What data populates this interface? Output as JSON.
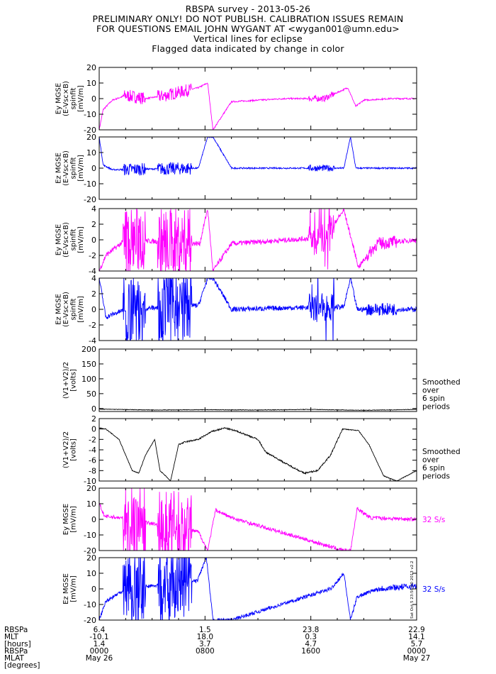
{
  "header": {
    "lines": [
      "RBSPA survey - 2013-05-26",
      "PRELIMINARY ONLY! DO NOT PUBLISH. CALIBRATION ISSUES REMAIN",
      "FOR QUESTIONS EMAIL JOHN WYGANT AT <wygan001@umn.edu>",
      "Vertical lines for eclipse",
      "Flagged data indicated by change in color"
    ]
  },
  "colors": {
    "magenta": "#ff00ff",
    "blue": "#0000ff",
    "black": "#000000"
  },
  "chart_data": [
    {
      "type": "line",
      "color": "magenta",
      "ylabel": [
        "Ey MGSE",
        "(E-Vsc×B)",
        "spinfit",
        "[mV/m]"
      ],
      "ylim": [
        -20,
        20
      ],
      "yticks": [
        -20,
        -10,
        0,
        10,
        20
      ],
      "series": [
        {
          "x_hours": [
            0,
            0.3,
            1,
            2,
            3.5,
            5,
            7.5,
            8.2,
            8.6,
            10,
            14,
            17,
            18.8,
            19.4,
            20,
            22,
            24
          ],
          "y": [
            -20,
            -7,
            -1,
            2,
            0,
            2,
            7,
            10,
            -20,
            -2,
            0,
            0,
            7,
            -5,
            -1,
            0,
            0
          ]
        }
      ]
    },
    {
      "type": "line",
      "color": "blue",
      "ylabel": [
        "Ez MGSE",
        "(E-Vsc×B)",
        "spinfit",
        "[mV/m]"
      ],
      "ylim": [
        -20,
        20
      ],
      "yticks": [
        -20,
        -10,
        0,
        10,
        20
      ],
      "series": [
        {
          "x_hours": [
            0,
            0.3,
            1,
            7.5,
            8.2,
            8.6,
            10,
            18.5,
            19,
            19.4,
            20,
            24
          ],
          "y": [
            20,
            2,
            -1,
            0,
            20,
            20,
            0,
            0,
            20,
            0,
            0,
            0
          ]
        }
      ]
    },
    {
      "type": "line",
      "color": "magenta",
      "ylabel": [
        "Ey MGSE",
        "(E-Vsc×B)",
        "spinfit",
        "[mV/m]"
      ],
      "ylim": [
        -4,
        4
      ],
      "yticks": [
        -4,
        -2,
        0,
        2,
        4
      ],
      "series": [
        {
          "x_hours": [
            0,
            0.5,
            2,
            7.6,
            8.2,
            8.6,
            10,
            17,
            18.5,
            19.0,
            19.6,
            21,
            24
          ],
          "y": [
            -4,
            -2,
            0,
            -0.5,
            4,
            -4,
            -0.5,
            0.3,
            3.8,
            0.5,
            -3.5,
            -0.5,
            0
          ]
        }
      ]
    },
    {
      "type": "line",
      "color": "blue",
      "ylabel": [
        "Ez MGSE",
        "(E-Vsc×B)",
        "spinfit",
        "[mV/m]"
      ],
      "ylim": [
        -4,
        4
      ],
      "yticks": [
        -4,
        -2,
        0,
        2,
        4
      ],
      "series": [
        {
          "x_hours": [
            0,
            0.5,
            2,
            7.5,
            8.2,
            8.6,
            10,
            17,
            18.5,
            19.0,
            19.5,
            21,
            24
          ],
          "y": [
            4,
            -1,
            0,
            0.5,
            4,
            4,
            0,
            0.3,
            0.3,
            4,
            0,
            0,
            0
          ]
        }
      ]
    },
    {
      "type": "line",
      "color": "black",
      "ylabel": [
        "(V1+V2)/2",
        "[volts]"
      ],
      "right_label": [
        "Smoothed",
        "over",
        "6 spin",
        "periods"
      ],
      "ylim": [
        -10,
        200
      ],
      "yticks": [
        0,
        50,
        100,
        150,
        200
      ],
      "series": [
        {
          "x_hours": [
            0,
            4,
            8,
            12,
            16,
            20,
            24
          ],
          "y": [
            -2,
            -5,
            -4,
            -5,
            -3,
            -6,
            -3
          ]
        }
      ]
    },
    {
      "type": "line",
      "color": "black",
      "ylabel": [
        "(V1+V2)/2",
        "[volts]"
      ],
      "right_label": [
        "Smoothed",
        "over",
        "6 spin",
        "periods"
      ],
      "ylim": [
        -10,
        2
      ],
      "yticks": [
        -10,
        -8,
        -6,
        -4,
        -2,
        0,
        2
      ],
      "series": [
        {
          "x_hours": [
            0,
            0.5,
            1.5,
            2.5,
            3.0,
            3.5,
            4.2,
            4.6,
            5.4,
            6.0,
            6.5,
            7.5,
            8.5,
            9.5,
            10.5,
            12.0,
            12.6,
            13.0,
            14.0,
            15.5,
            16.5,
            17.5,
            18.4,
            19.6,
            20.4,
            21.5,
            22.5,
            24
          ],
          "y": [
            0.2,
            0,
            -2,
            -8,
            -8.5,
            -5,
            -2,
            -8,
            -10,
            -3,
            -2.5,
            -2,
            -0.5,
            0.2,
            -0.5,
            -2,
            -4.5,
            -5,
            -6.5,
            -8.5,
            -8,
            -5,
            0,
            -0.3,
            -3,
            -9,
            -10,
            -8
          ]
        }
      ]
    },
    {
      "type": "line",
      "color": "magenta",
      "ylabel": [
        "Ey MGSE",
        "[mV/m]"
      ],
      "right_label": [
        "32 S/s"
      ],
      "ylim": [
        -20,
        20
      ],
      "yticks": [
        -20,
        -10,
        0,
        10,
        20
      ],
      "series": [
        {
          "x_hours": [
            0,
            0.4,
            1.5,
            7.5,
            8.2,
            8.8,
            10,
            18.5,
            19.0,
            19.5,
            20.5,
            24
          ],
          "y": [
            10,
            2,
            1,
            -8,
            -20,
            6,
            1,
            -20,
            -20,
            7,
            1,
            0
          ]
        }
      ]
    },
    {
      "type": "line",
      "color": "blue",
      "ylabel": [
        "Ez MGSE",
        "[mV/m]"
      ],
      "right_label": [
        "32 S/s"
      ],
      "ylim": [
        -20,
        20
      ],
      "yticks": [
        -20,
        -10,
        0,
        10,
        20
      ],
      "series": [
        {
          "x_hours": [
            0,
            0.5,
            2,
            7.4,
            8.1,
            8.6,
            10,
            17.5,
            18.5,
            19.0,
            19.5,
            21,
            24
          ],
          "y": [
            -20,
            -8,
            0,
            5,
            20,
            -20,
            -20,
            0,
            10,
            -20,
            -5,
            0,
            2
          ]
        }
      ]
    }
  ],
  "x_axis": {
    "range_hours": [
      0,
      24
    ],
    "row_labels": [
      "RBSPa",
      "MLT",
      "[hours]",
      "RBSPa",
      "MLAT",
      "[degrees]"
    ],
    "ticks": [
      {
        "hours": 0,
        "mlt": "6.4",
        "mlat": "-10.1",
        "hours_val": "1.4",
        "time": "0000",
        "date": "May 26"
      },
      {
        "hours": 8,
        "mlt": "1.5",
        "mlat": "18.0",
        "hours_val": "3.7",
        "time": "0800",
        "date": ""
      },
      {
        "hours": 16,
        "mlt": "23.8",
        "mlat": "0.3",
        "hours_val": "4.7",
        "time": "1600",
        "date": ""
      },
      {
        "hours": 24,
        "mlt": "22.9",
        "mlat": "14.1",
        "hours_val": "5.7",
        "time": "0000",
        "date": "May 27"
      }
    ]
  },
  "stamp": "Sat Oct 5 23:56:00 2013 v2.2"
}
